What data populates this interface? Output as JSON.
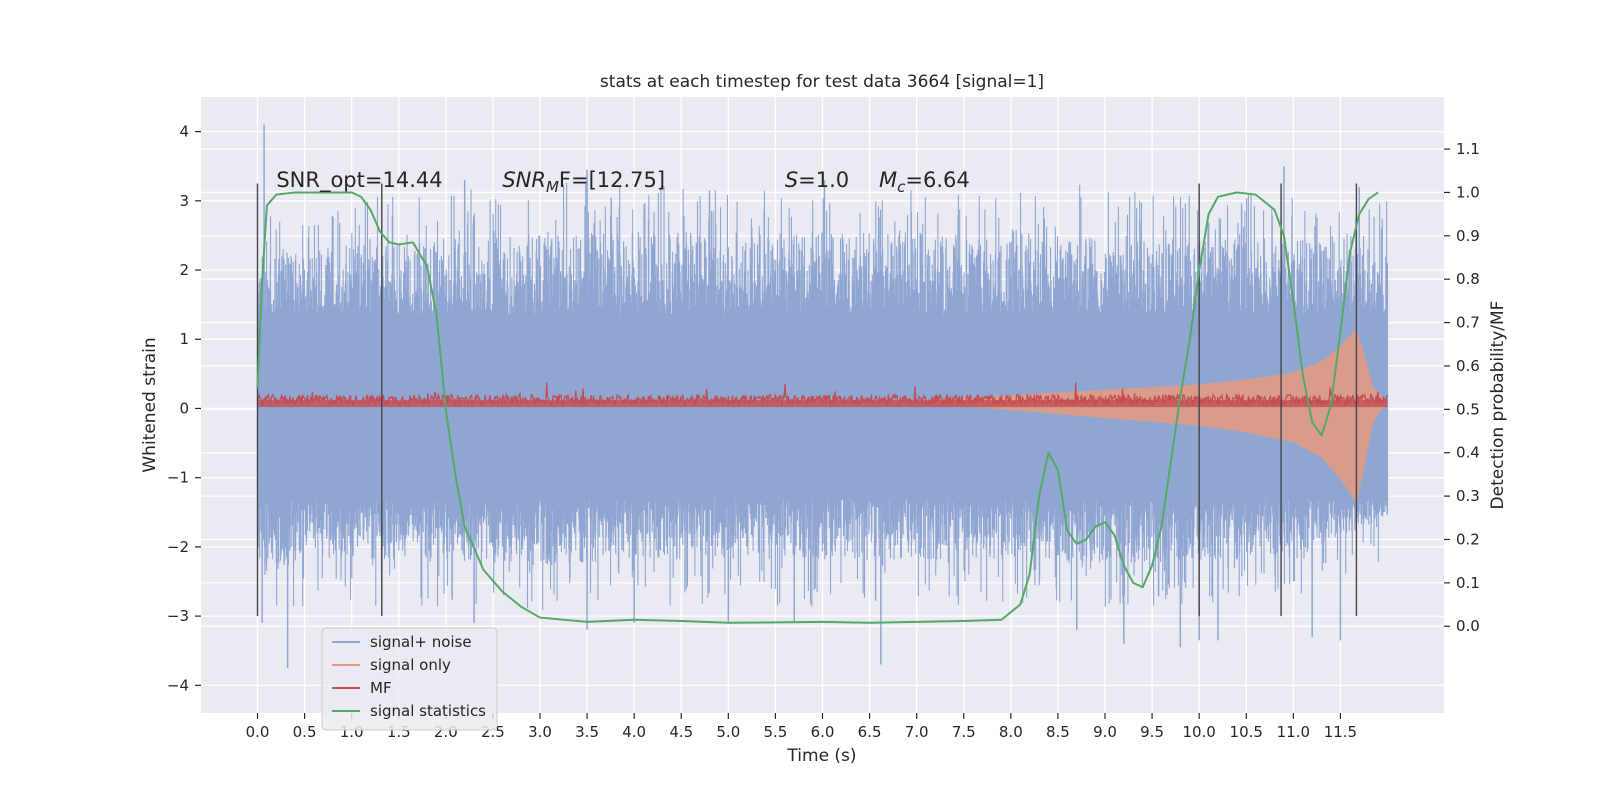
{
  "chart_data": {
    "type": "line",
    "title": "stats at each timestep for test data 3664 [signal=1]",
    "xlabel": "Time (s)",
    "ylabel_left": "Whitened strain",
    "ylabel_right": "Detection probability/MF",
    "xlim": [
      -0.6,
      12.6
    ],
    "ylim_left": [
      -4.4,
      4.5
    ],
    "ylim_right": [
      -0.2,
      1.22
    ],
    "grid": true,
    "legend_position": "lower-left",
    "x_ticks": [
      0.0,
      0.5,
      1.0,
      1.5,
      2.0,
      2.5,
      3.0,
      3.5,
      4.0,
      4.5,
      5.0,
      5.5,
      6.0,
      6.5,
      7.0,
      7.5,
      8.0,
      8.5,
      9.0,
      9.5,
      10.0,
      10.5,
      11.0,
      11.5
    ],
    "x_tick_labels": [
      "0.0",
      "0.5",
      "1.0",
      "1.5",
      "2.0",
      "2.5",
      "3.0",
      "3.5",
      "4.0",
      "4.5",
      "5.0",
      "5.5",
      "6.0",
      "6.5",
      "7.0",
      "7.5",
      "8.0",
      "8.5",
      "9.0",
      "9.5",
      "10.0",
      "10.5",
      "11.0",
      "11.5"
    ],
    "y_left_ticks": [
      4,
      3,
      2,
      1,
      0,
      -1,
      -2,
      -3,
      -4
    ],
    "y_left_tick_labels": [
      "4",
      "3",
      "2",
      "1",
      "0",
      "−1",
      "−2",
      "−3",
      "−4"
    ],
    "y_right_ticks": [
      1.1,
      1.0,
      0.9,
      0.8,
      0.7,
      0.6,
      0.5,
      0.4,
      0.3,
      0.2,
      0.1,
      0.0
    ],
    "y_right_tick_labels": [
      "1.1",
      "1.0",
      "0.9",
      "0.8",
      "0.7",
      "0.6",
      "0.5",
      "0.4",
      "0.3",
      "0.2",
      "0.1",
      "0.0"
    ],
    "annotations": [
      {
        "text": "SNR_opt=14.44",
        "x": 0.2,
        "y": 3.3
      },
      {
        "text": "SNR_MF=[12.75]",
        "x": 2.6,
        "y": 3.3
      },
      {
        "text": "S=1.0",
        "x": 5.6,
        "y": 3.3
      },
      {
        "text": "M_c=6.64",
        "x": 6.6,
        "y": 3.3
      }
    ],
    "vertical_markers_x": [
      0.0,
      1.32,
      10.0,
      10.87,
      11.67
    ],
    "vertical_markers_ylim": [
      -3.0,
      3.25
    ],
    "noise_series": {
      "name": "signal+ noise",
      "color": "#8fa6d2",
      "x_range": [
        0.0,
        12.0
      ],
      "envelope_top": [
        [
          0.0,
          2.2
        ],
        [
          0.5,
          2.4
        ],
        [
          1.0,
          2.5
        ],
        [
          2.0,
          2.6
        ],
        [
          3.0,
          2.7
        ],
        [
          4.0,
          2.7
        ],
        [
          5.0,
          2.7
        ],
        [
          6.0,
          2.7
        ],
        [
          7.0,
          2.7
        ],
        [
          8.0,
          2.6
        ],
        [
          9.0,
          2.7
        ],
        [
          10.0,
          2.6
        ],
        [
          11.0,
          2.6
        ],
        [
          12.0,
          2.4
        ]
      ],
      "envelope_bottom": [
        [
          0.0,
          -2.5
        ],
        [
          0.5,
          -2.4
        ],
        [
          1.0,
          -2.3
        ],
        [
          2.0,
          -2.3
        ],
        [
          3.0,
          -2.4
        ],
        [
          4.0,
          -2.3
        ],
        [
          5.0,
          -2.3
        ],
        [
          6.0,
          -2.3
        ],
        [
          7.0,
          -2.3
        ],
        [
          8.0,
          -2.3
        ],
        [
          9.0,
          -2.4
        ],
        [
          10.0,
          -2.3
        ],
        [
          11.0,
          -2.3
        ],
        [
          12.0,
          -1.6
        ]
      ],
      "band_top": 1.35,
      "band_bottom": -1.3,
      "spikes": [
        [
          0.07,
          4.1
        ],
        [
          0.05,
          -3.1
        ],
        [
          0.32,
          -3.75
        ],
        [
          2.2,
          3.3
        ],
        [
          2.3,
          -3.1
        ],
        [
          3.5,
          3.45
        ],
        [
          3.5,
          -3.2
        ],
        [
          4.0,
          -3.1
        ],
        [
          4.8,
          3.15
        ],
        [
          5.0,
          -3.1
        ],
        [
          5.7,
          -3.1
        ],
        [
          6.02,
          3.3
        ],
        [
          6.62,
          -3.7
        ],
        [
          8.7,
          -3.2
        ],
        [
          9.2,
          -3.4
        ],
        [
          9.8,
          -3.45
        ],
        [
          10.0,
          -3.35
        ],
        [
          10.2,
          -3.35
        ],
        [
          10.9,
          3.5
        ],
        [
          11.2,
          -3.3
        ],
        [
          11.5,
          -3.35
        ],
        [
          11.7,
          3.2
        ]
      ]
    },
    "signal_series": {
      "name": "signal only",
      "color": "#e59980",
      "description_points": [
        [
          0.0,
          0.0
        ],
        [
          7.0,
          0.0
        ],
        [
          8.0,
          0.07
        ],
        [
          9.0,
          0.13
        ],
        [
          10.0,
          0.22
        ],
        [
          10.5,
          0.3
        ],
        [
          11.0,
          0.38
        ],
        [
          11.4,
          0.6
        ],
        [
          11.67,
          1.05
        ],
        [
          11.8,
          0.7
        ],
        [
          12.0,
          0.0
        ]
      ],
      "amplitude_envelope": [
        [
          0.0,
          0.0
        ],
        [
          7.0,
          0.0
        ],
        [
          8.0,
          0.09
        ],
        [
          9.0,
          0.17
        ],
        [
          10.0,
          0.25
        ],
        [
          10.5,
          0.32
        ],
        [
          11.0,
          0.42
        ],
        [
          11.3,
          0.58
        ],
        [
          11.5,
          0.8
        ],
        [
          11.67,
          1.05
        ],
        [
          11.75,
          0.7
        ],
        [
          11.85,
          0.2
        ],
        [
          12.0,
          0.0
        ]
      ]
    },
    "mf_series": {
      "name": "MF",
      "color": "#c44e52",
      "axis": "left",
      "baseline_range": [
        0.05,
        0.2
      ],
      "peak": 0.38
    },
    "statistics_series": {
      "name": "signal statistics",
      "color": "#55a868",
      "axis": "right",
      "points": [
        [
          0.0,
          0.55
        ],
        [
          0.05,
          0.8
        ],
        [
          0.1,
          0.97
        ],
        [
          0.2,
          0.995
        ],
        [
          0.4,
          1.0
        ],
        [
          1.0,
          1.0
        ],
        [
          1.1,
          0.99
        ],
        [
          1.2,
          0.96
        ],
        [
          1.3,
          0.91
        ],
        [
          1.4,
          0.885
        ],
        [
          1.5,
          0.88
        ],
        [
          1.65,
          0.885
        ],
        [
          1.8,
          0.83
        ],
        [
          1.9,
          0.72
        ],
        [
          2.0,
          0.5
        ],
        [
          2.1,
          0.35
        ],
        [
          2.2,
          0.23
        ],
        [
          2.4,
          0.13
        ],
        [
          2.6,
          0.08
        ],
        [
          2.8,
          0.045
        ],
        [
          3.0,
          0.02
        ],
        [
          3.5,
          0.01
        ],
        [
          4.0,
          0.015
        ],
        [
          4.5,
          0.012
        ],
        [
          5.0,
          0.008
        ],
        [
          6.0,
          0.01
        ],
        [
          6.5,
          0.008
        ],
        [
          7.0,
          0.01
        ],
        [
          7.5,
          0.012
        ],
        [
          7.9,
          0.015
        ],
        [
          8.1,
          0.05
        ],
        [
          8.2,
          0.12
        ],
        [
          8.3,
          0.3
        ],
        [
          8.4,
          0.4
        ],
        [
          8.5,
          0.36
        ],
        [
          8.6,
          0.22
        ],
        [
          8.7,
          0.19
        ],
        [
          8.8,
          0.2
        ],
        [
          8.9,
          0.23
        ],
        [
          9.0,
          0.24
        ],
        [
          9.1,
          0.21
        ],
        [
          9.2,
          0.14
        ],
        [
          9.3,
          0.1
        ],
        [
          9.4,
          0.09
        ],
        [
          9.5,
          0.14
        ],
        [
          9.6,
          0.23
        ],
        [
          9.7,
          0.38
        ],
        [
          9.8,
          0.53
        ],
        [
          9.9,
          0.66
        ],
        [
          10.0,
          0.82
        ],
        [
          10.1,
          0.95
        ],
        [
          10.2,
          0.99
        ],
        [
          10.4,
          1.0
        ],
        [
          10.6,
          0.995
        ],
        [
          10.8,
          0.96
        ],
        [
          10.9,
          0.9
        ],
        [
          11.0,
          0.75
        ],
        [
          11.1,
          0.58
        ],
        [
          11.2,
          0.47
        ],
        [
          11.3,
          0.44
        ],
        [
          11.4,
          0.51
        ],
        [
          11.5,
          0.68
        ],
        [
          11.6,
          0.86
        ],
        [
          11.7,
          0.95
        ],
        [
          11.8,
          0.985
        ],
        [
          11.9,
          1.0
        ]
      ]
    },
    "legend": [
      {
        "label": "signal+ noise",
        "color": "#8fa6d2"
      },
      {
        "label": "signal only",
        "color": "#e59980"
      },
      {
        "label": "MF",
        "color": "#c44e52"
      },
      {
        "label": "signal statistics",
        "color": "#55a868"
      }
    ],
    "colors": {
      "plot_background": "#eaeaf2",
      "grid": "#ffffff",
      "vertical_markers": "#444444"
    }
  }
}
